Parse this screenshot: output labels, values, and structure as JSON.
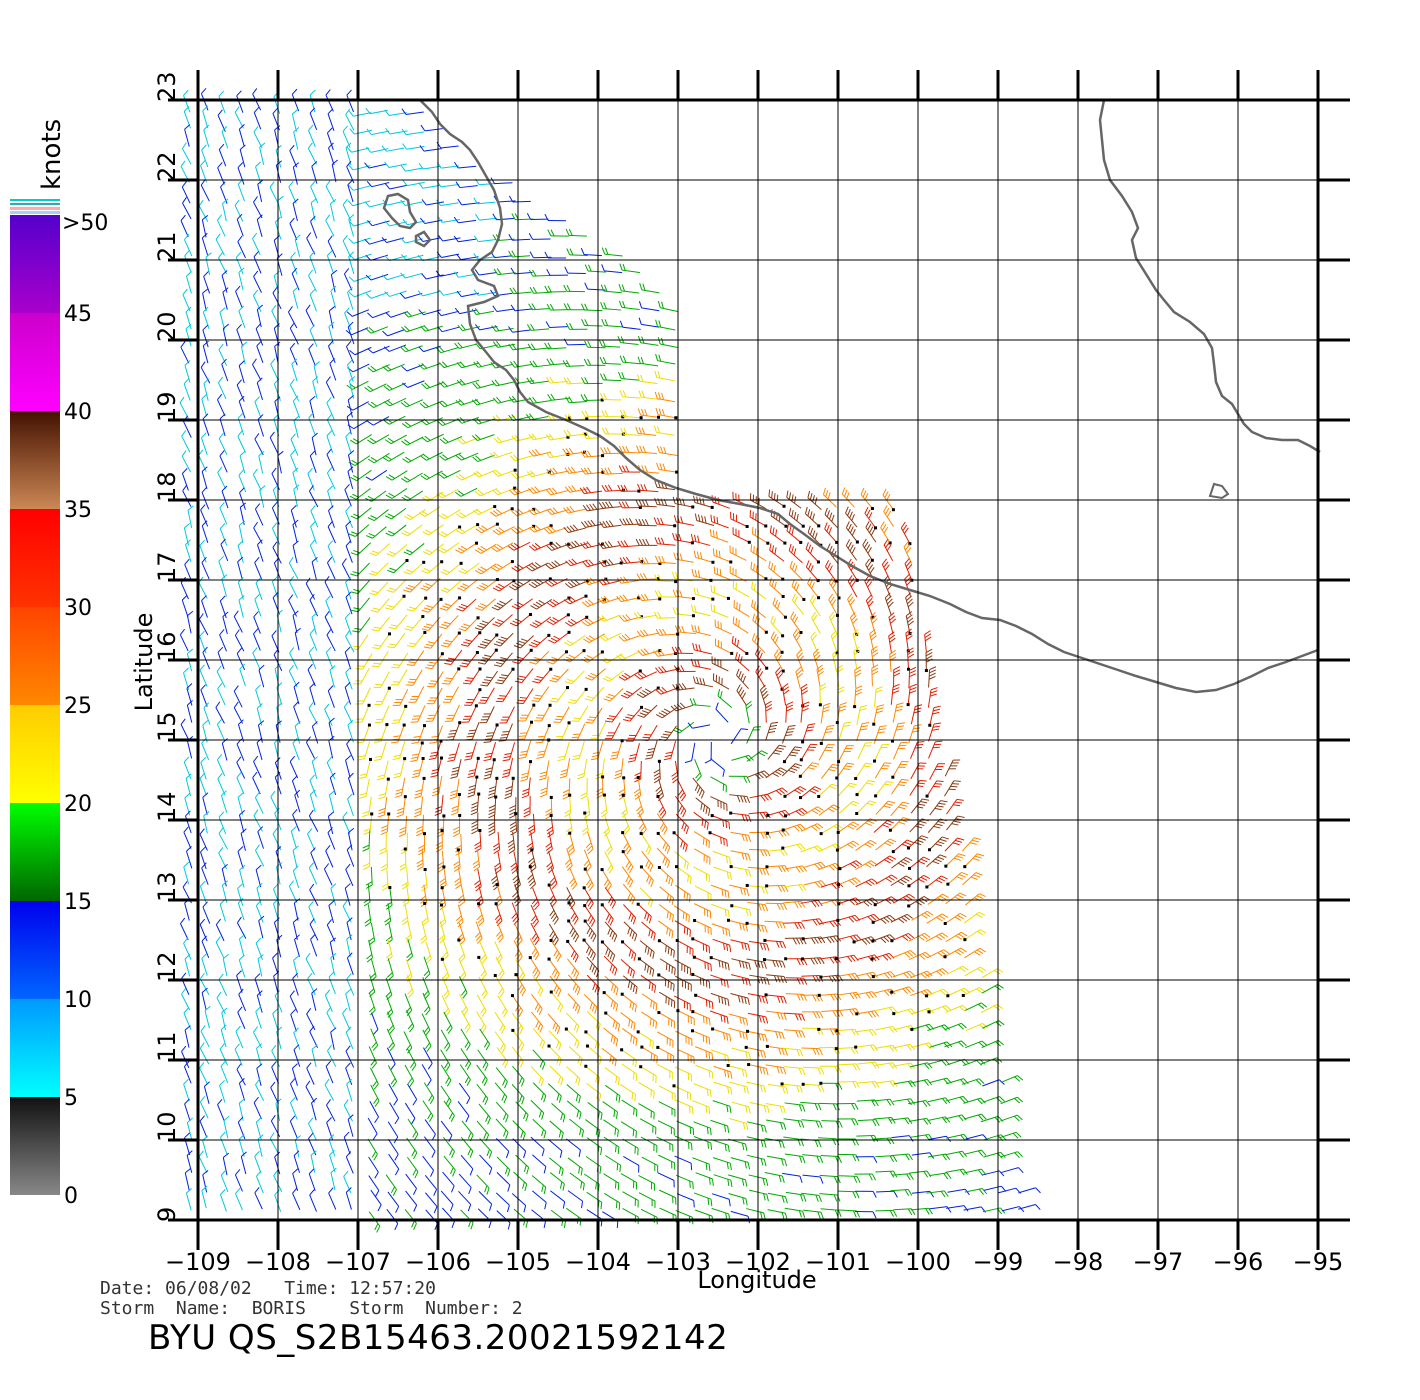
{
  "colorbar": {
    "unit_label": "knots",
    "top_label": ">50",
    "tick_labels": [
      "0",
      "5",
      "10",
      "15",
      "20",
      "25",
      "30",
      "35",
      "40",
      "45"
    ],
    "segments": [
      {
        "from": 0,
        "to": 5,
        "colors": [
          "#888888",
          "#111111"
        ]
      },
      {
        "from": 5,
        "to": 10,
        "colors": [
          "#00ffff",
          "#0099ff"
        ]
      },
      {
        "from": 10,
        "to": 15,
        "colors": [
          "#0066ff",
          "#0000ee"
        ]
      },
      {
        "from": 15,
        "to": 20,
        "colors": [
          "#006600",
          "#00ff00"
        ]
      },
      {
        "from": 20,
        "to": 25,
        "colors": [
          "#ffff00",
          "#ffcc00"
        ]
      },
      {
        "from": 25,
        "to": 30,
        "colors": [
          "#ff8800",
          "#ff4400"
        ]
      },
      {
        "from": 30,
        "to": 35,
        "colors": [
          "#ff3300",
          "#ff0000"
        ]
      },
      {
        "from": 35,
        "to": 40,
        "colors": [
          "#cc8855",
          "#441100"
        ]
      },
      {
        "from": 40,
        "to": 45,
        "colors": [
          "#ff00ff",
          "#cc00cc"
        ]
      },
      {
        "from": 45,
        "to": 50,
        "colors": [
          "#aa00cc",
          "#5500cc"
        ]
      }
    ]
  },
  "map": {
    "x_axis_title": "Longitude",
    "y_axis_title": "Latitude",
    "lon_ticks": [
      -109,
      -108,
      -107,
      -106,
      -105,
      -104,
      -103,
      -102,
      -101,
      -100,
      -99,
      -98,
      -97,
      -96,
      -95
    ],
    "lat_ticks": [
      9,
      10,
      11,
      12,
      13,
      14,
      15,
      16,
      17,
      18,
      19,
      20,
      21,
      22,
      23
    ],
    "lon_range": [
      -109,
      -95
    ],
    "lat_range": [
      9,
      23
    ],
    "coastline_color": "#666666",
    "grid": true,
    "storm_center": {
      "lon": -102.5,
      "lat": 15.0
    }
  },
  "info": {
    "line1": "Date: 06/08/02   Time: 12:57:20",
    "line2": "Storm  Name:  BORIS    Storm  Number: 2",
    "title": "BYU  QS_S2B15463.20021592142"
  }
}
